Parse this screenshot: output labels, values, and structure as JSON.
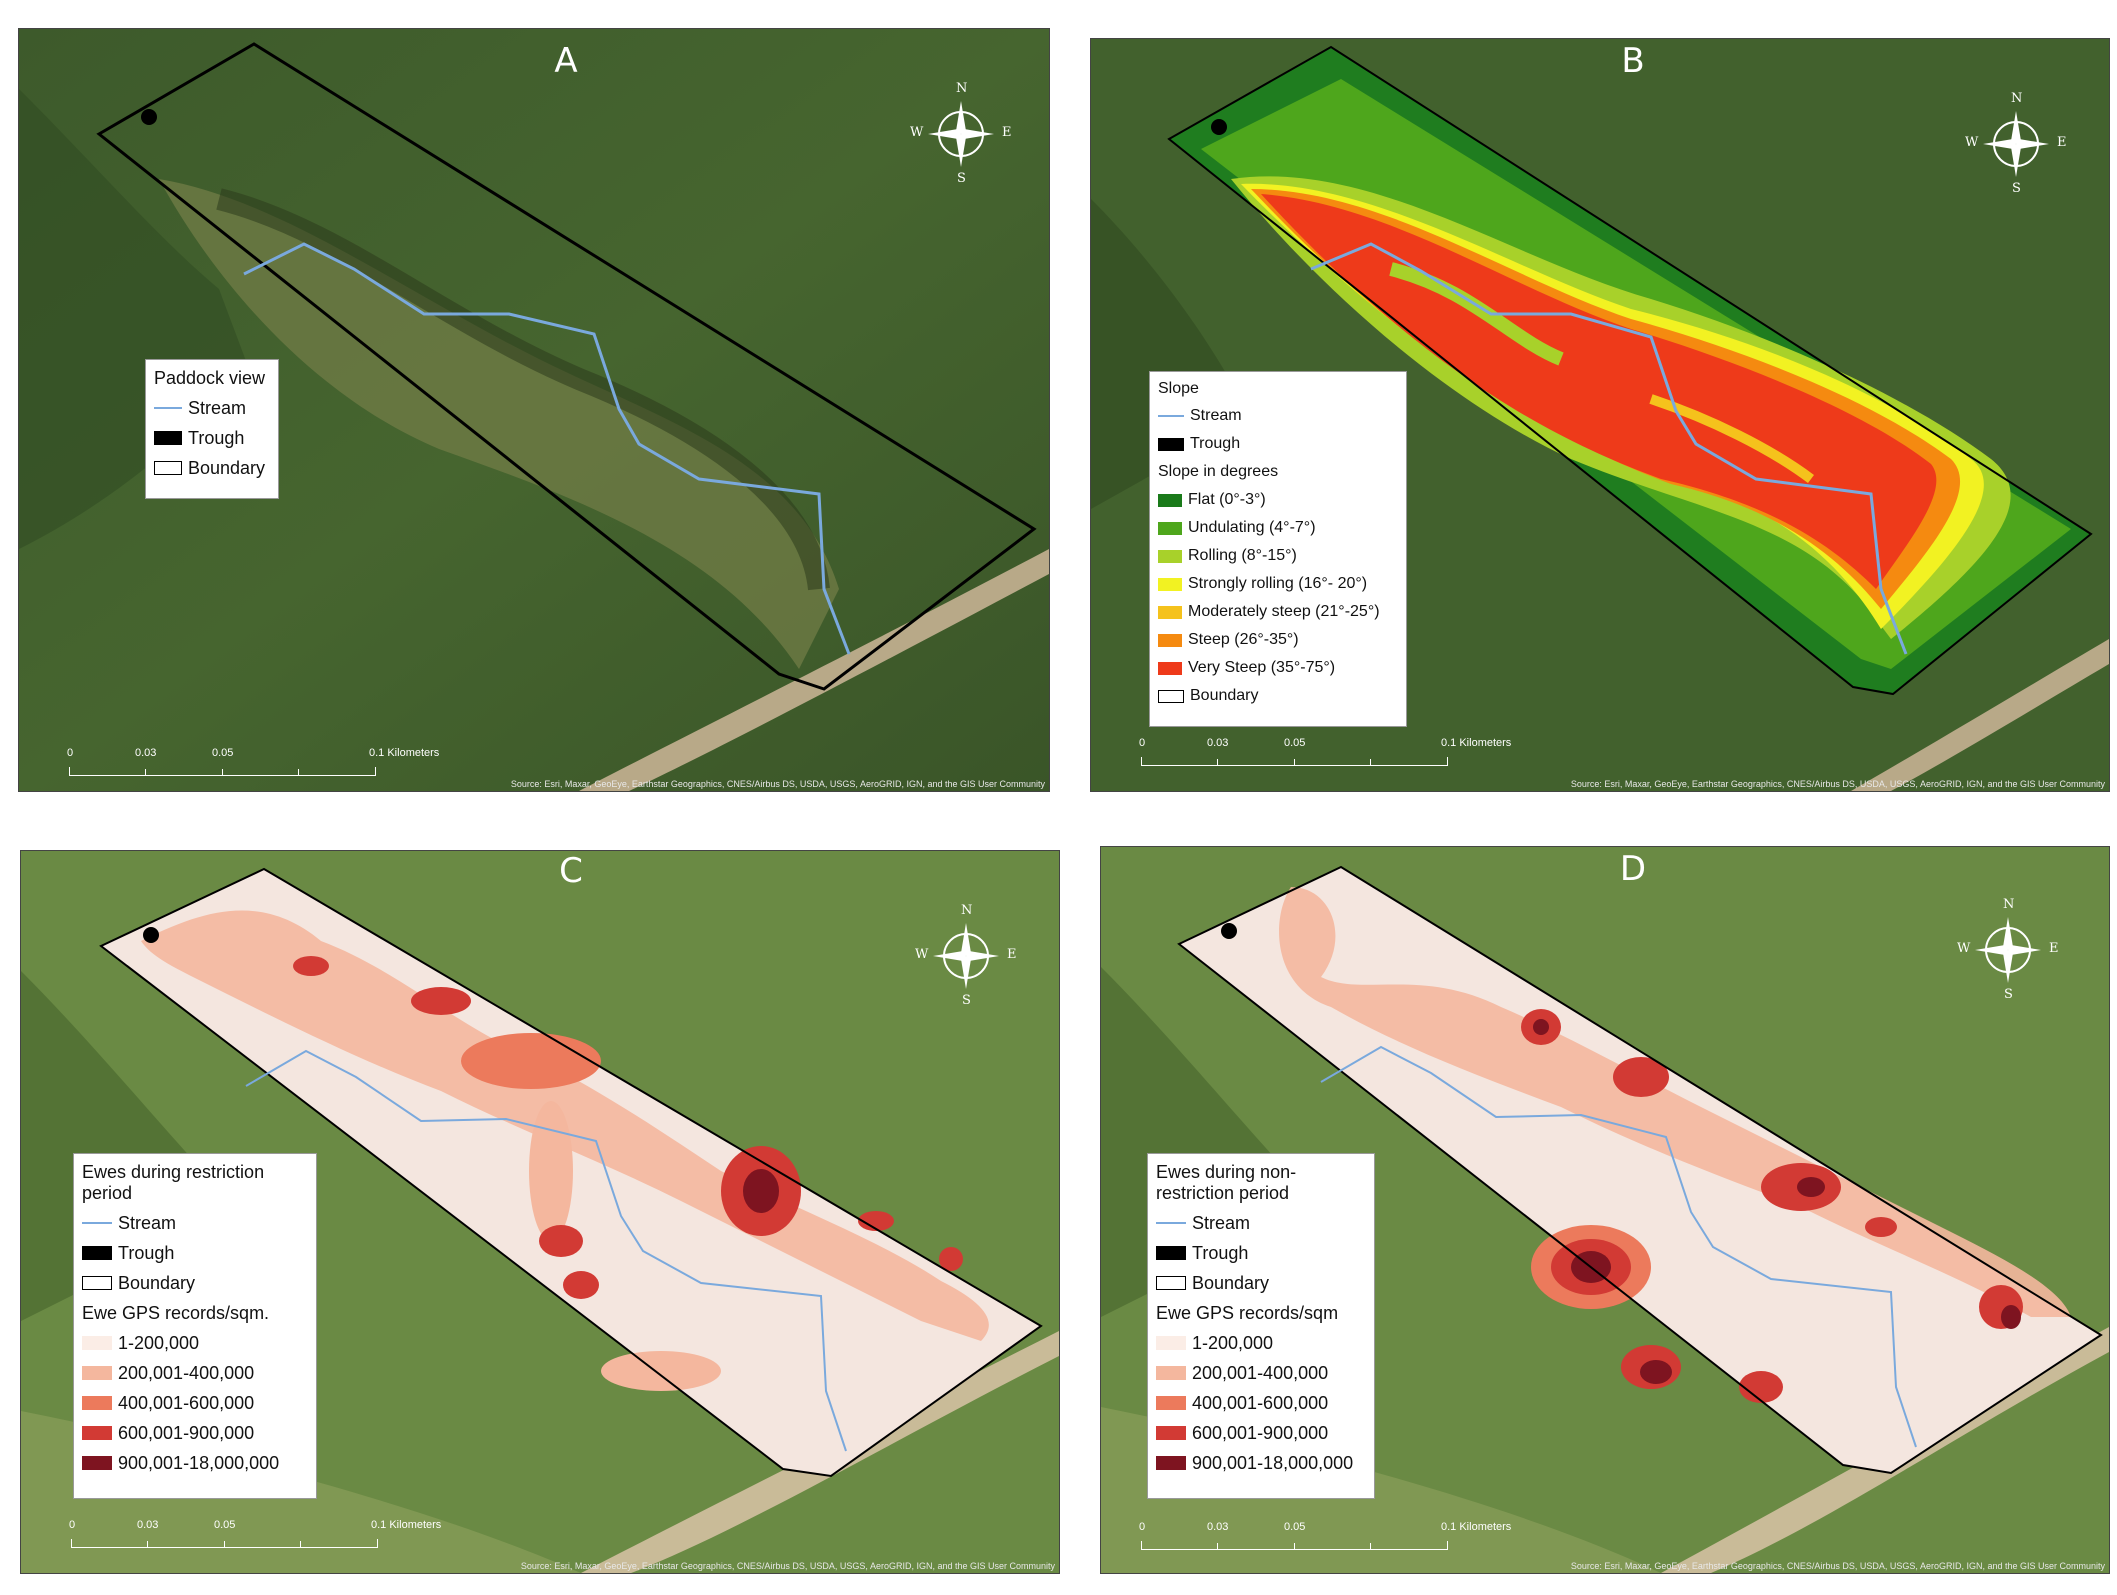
{
  "panels": {
    "a": {
      "label": "A",
      "legend": {
        "title": "Paddock view",
        "items": [
          "Stream",
          "Trough",
          "Boundary"
        ]
      }
    },
    "b": {
      "label": "B",
      "legend": {
        "title": "Slope",
        "items": [
          "Stream",
          "Trough"
        ],
        "subtitle": "Slope in degrees",
        "classes": [
          {
            "label": "Flat (0°-3°)",
            "color": "#1a7a1a"
          },
          {
            "label": "Undulating (4°-7°)",
            "color": "#4ea61c"
          },
          {
            "label": "Rolling (8°-15°)",
            "color": "#a8d12a"
          },
          {
            "label": "Strongly rolling (16°- 20°)",
            "color": "#f2f222"
          },
          {
            "label": "Moderately steep (21°-25°)",
            "color": "#f5c21c"
          },
          {
            "label": "Steep (26°-35°)",
            "color": "#f58a10"
          },
          {
            "label": "Very Steep (35°-75°)",
            "color": "#ee3a1a"
          }
        ],
        "boundary": "Boundary"
      }
    },
    "c": {
      "label": "C",
      "legend": {
        "title": "Ewes during restriction period",
        "items": [
          "Stream",
          "Trough",
          "Boundary"
        ],
        "subtitle": "Ewe GPS records/sqm.",
        "classes": [
          {
            "label": "1-200,000",
            "color": "#fbede6"
          },
          {
            "label": "200,001-400,000",
            "color": "#f4b79e"
          },
          {
            "label": "400,001-600,000",
            "color": "#ec7a5c"
          },
          {
            "label": "600,001-900,000",
            "color": "#d23a34"
          },
          {
            "label": "900,001-18,000,000",
            "color": "#7e1420"
          }
        ]
      }
    },
    "d": {
      "label": "D",
      "legend": {
        "title": "Ewes during non-restriction period",
        "items": [
          "Stream",
          "Trough",
          "Boundary"
        ],
        "subtitle": "Ewe GPS records/sqm",
        "classes": [
          {
            "label": "1-200,000",
            "color": "#fbede6"
          },
          {
            "label": "200,001-400,000",
            "color": "#f4b79e"
          },
          {
            "label": "400,001-600,000",
            "color": "#ec7a5c"
          },
          {
            "label": "600,001-900,000",
            "color": "#d23a34"
          },
          {
            "label": "900,001-18,000,000",
            "color": "#7e1420"
          }
        ]
      }
    }
  },
  "scale_bar": {
    "ticks": [
      "0",
      "0.03",
      "0.05",
      "0.1 Kilometers"
    ]
  },
  "compass": {
    "n": "N",
    "s": "S",
    "e": "E",
    "w": "W"
  },
  "attribution": "Source: Esri, Maxar, GeoEye, Earthstar Geographics, CNES/Airbus DS, USDA, USGS, AeroGRID, IGN, and the GIS User Community",
  "colors": {
    "stream": "#7aa9dd",
    "trough": "#000000",
    "boundary": "#000000",
    "grass": "#3f5f2c"
  }
}
